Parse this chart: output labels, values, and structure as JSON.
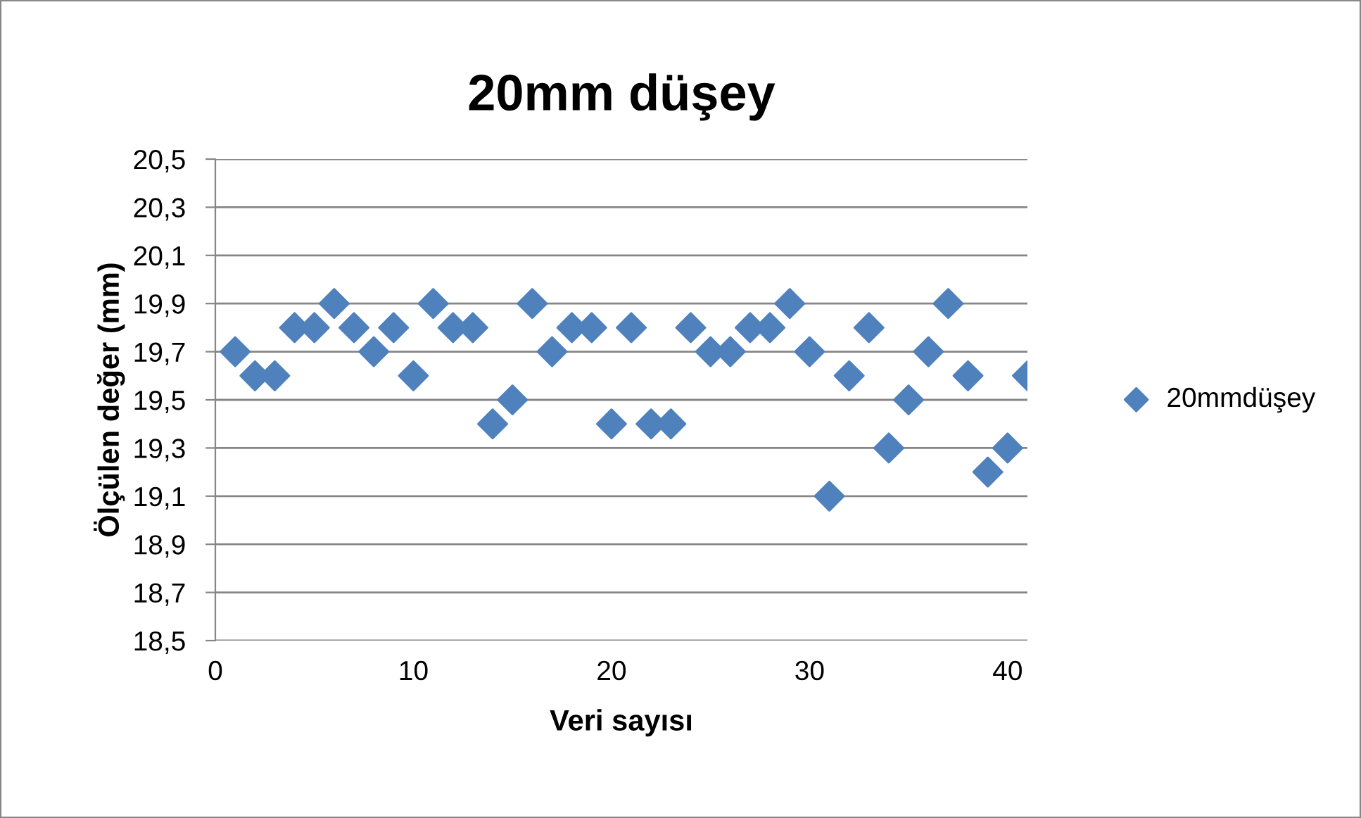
{
  "chart_data": {
    "type": "scatter",
    "title": "20mm düşey",
    "xlabel": "Veri sayısı",
    "ylabel": "Ölçülen değer (mm)",
    "x": [
      1,
      2,
      3,
      4,
      5,
      6,
      7,
      8,
      9,
      10,
      11,
      12,
      13,
      14,
      15,
      16,
      17,
      18,
      19,
      20,
      21,
      22,
      23,
      24,
      25,
      26,
      27,
      28,
      29,
      30,
      31,
      32,
      33,
      34,
      35,
      36,
      37,
      38,
      39,
      40,
      41
    ],
    "series": [
      {
        "name": "20mmdüşey",
        "color": "#4f81bd",
        "values": [
          19.7,
          19.6,
          19.6,
          19.8,
          19.8,
          19.9,
          19.8,
          19.7,
          19.8,
          19.6,
          19.9,
          19.8,
          19.8,
          19.4,
          19.5,
          19.9,
          19.7,
          19.8,
          19.8,
          19.4,
          19.8,
          19.4,
          19.4,
          19.8,
          19.7,
          19.7,
          19.8,
          19.8,
          19.9,
          19.7,
          19.1,
          19.6,
          19.8,
          19.3,
          19.5,
          19.7,
          19.9,
          19.6,
          19.2,
          19.3,
          19.6
        ]
      }
    ],
    "xlim": [
      0,
      41
    ],
    "xticks": [
      0,
      10,
      20,
      30,
      40
    ],
    "ylim": [
      18.5,
      20.5
    ],
    "yticks": [
      {
        "value": 18.5,
        "label": "18,5"
      },
      {
        "value": 18.7,
        "label": "18,7"
      },
      {
        "value": 18.9,
        "label": "18,9"
      },
      {
        "value": 19.1,
        "label": "19,1"
      },
      {
        "value": 19.3,
        "label": "19,3"
      },
      {
        "value": 19.5,
        "label": "19,5"
      },
      {
        "value": 19.7,
        "label": "19,7"
      },
      {
        "value": 19.9,
        "label": "19,9"
      },
      {
        "value": 20.1,
        "label": "20,1"
      },
      {
        "value": 20.3,
        "label": "20,3"
      },
      {
        "value": 20.5,
        "label": "20,5"
      }
    ],
    "grid": "y",
    "legend": "right",
    "marker": "diamond"
  }
}
